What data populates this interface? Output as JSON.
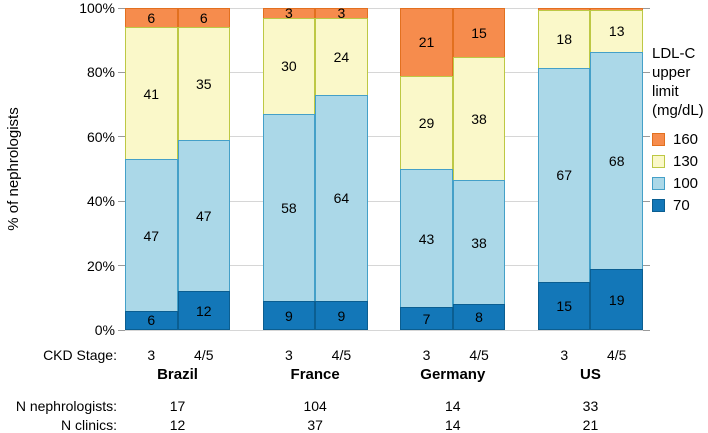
{
  "y_axis": {
    "label": "% of nephrologists",
    "ticks": [
      {
        "label": "0%",
        "pct": 0
      },
      {
        "label": "20%",
        "pct": 20
      },
      {
        "label": "40%",
        "pct": 40
      },
      {
        "label": "60%",
        "pct": 60
      },
      {
        "label": "80%",
        "pct": 80
      },
      {
        "label": "100%",
        "pct": 100
      }
    ]
  },
  "legend": {
    "title_lines": [
      "LDL-C",
      "upper",
      "limit",
      "(mg/dL)"
    ],
    "items": [
      {
        "key": "160",
        "label": "160"
      },
      {
        "key": "130",
        "label": "130"
      },
      {
        "key": "100",
        "label": "100"
      },
      {
        "key": "70",
        "label": "70"
      }
    ]
  },
  "chart_data": {
    "type": "bar",
    "stacked": true,
    "percent_scale": true,
    "ylim": [
      0,
      100
    ],
    "ylabel": "% of nephrologists",
    "legend_title": "LDL-C upper limit (mg/dL)",
    "stack_order_bottom_to_top": [
      "70",
      "100",
      "130",
      "160"
    ],
    "stage_axis_label": "CKD Stage:",
    "groups": [
      {
        "country": "Brazil",
        "n_nephrologists": "17",
        "n_clinics": "12",
        "bars": [
          {
            "stage": "3",
            "segments": [
              {
                "key": "70",
                "value": 6,
                "label": "6"
              },
              {
                "key": "100",
                "value": 47,
                "label": "47"
              },
              {
                "key": "130",
                "value": 41,
                "label": "41"
              },
              {
                "key": "160",
                "value": 6,
                "label": "6"
              }
            ]
          },
          {
            "stage": "4/5",
            "segments": [
              {
                "key": "70",
                "value": 12,
                "label": "12"
              },
              {
                "key": "100",
                "value": 47,
                "label": "47"
              },
              {
                "key": "130",
                "value": 35,
                "label": "35"
              },
              {
                "key": "160",
                "value": 6,
                "label": "6"
              }
            ]
          }
        ]
      },
      {
        "country": "France",
        "n_nephrologists": "104",
        "n_clinics": "37",
        "bars": [
          {
            "stage": "3",
            "segments": [
              {
                "key": "70",
                "value": 9,
                "label": "9"
              },
              {
                "key": "100",
                "value": 58,
                "label": "58"
              },
              {
                "key": "130",
                "value": 30,
                "label": "30"
              },
              {
                "key": "160",
                "value": 3,
                "label": "3"
              }
            ]
          },
          {
            "stage": "4/5",
            "segments": [
              {
                "key": "70",
                "value": 9,
                "label": "9"
              },
              {
                "key": "100",
                "value": 64,
                "label": "64"
              },
              {
                "key": "130",
                "value": 24,
                "label": "24"
              },
              {
                "key": "160",
                "value": 3,
                "label": "3"
              }
            ]
          }
        ]
      },
      {
        "country": "Germany",
        "n_nephrologists": "14",
        "n_clinics": "14",
        "bars": [
          {
            "stage": "3",
            "segments": [
              {
                "key": "70",
                "value": 7,
                "label": "7"
              },
              {
                "key": "100",
                "value": 43,
                "label": "43"
              },
              {
                "key": "130",
                "value": 29,
                "label": "29"
              },
              {
                "key": "160",
                "value": 21,
                "label": "21"
              }
            ]
          },
          {
            "stage": "4/5",
            "segments": [
              {
                "key": "70",
                "value": 8,
                "label": "8"
              },
              {
                "key": "100",
                "value": 38,
                "label": "38"
              },
              {
                "key": "130",
                "value": 38,
                "label": "38"
              },
              {
                "key": "160",
                "value": 15,
                "label": "15"
              }
            ]
          }
        ]
      },
      {
        "country": "US",
        "n_nephrologists": "33",
        "n_clinics": "21",
        "bars": [
          {
            "stage": "3",
            "segments": [
              {
                "key": "70",
                "value": 15,
                "label": "15"
              },
              {
                "key": "100",
                "value": 67,
                "label": "67"
              },
              {
                "key": "130",
                "value": 18,
                "label": "18"
              },
              {
                "key": "160",
                "value": 0.6,
                "label": ""
              }
            ]
          },
          {
            "stage": "4/5",
            "segments": [
              {
                "key": "70",
                "value": 19,
                "label": "19"
              },
              {
                "key": "100",
                "value": 68,
                "label": "68"
              },
              {
                "key": "130",
                "value": 13,
                "label": "13"
              },
              {
                "key": "160",
                "value": 0.6,
                "label": ""
              }
            ]
          }
        ]
      }
    ]
  },
  "footer": {
    "n_nephrologists_label": "N nephrologists:",
    "n_clinics_label": "N clinics:"
  },
  "colors": {
    "segments": {
      "160": {
        "fill": "#F68C4D",
        "border": "#E2701F"
      },
      "130": {
        "fill": "#FAF8C9",
        "border": "#BDC844"
      },
      "100": {
        "fill": "#ABD8E8",
        "border": "#44A0C8"
      },
      "70": {
        "fill": "#1377B8",
        "border": "#0B5E91"
      }
    },
    "gridline": "#D6D6D6",
    "tick": "#9A9A9A"
  }
}
